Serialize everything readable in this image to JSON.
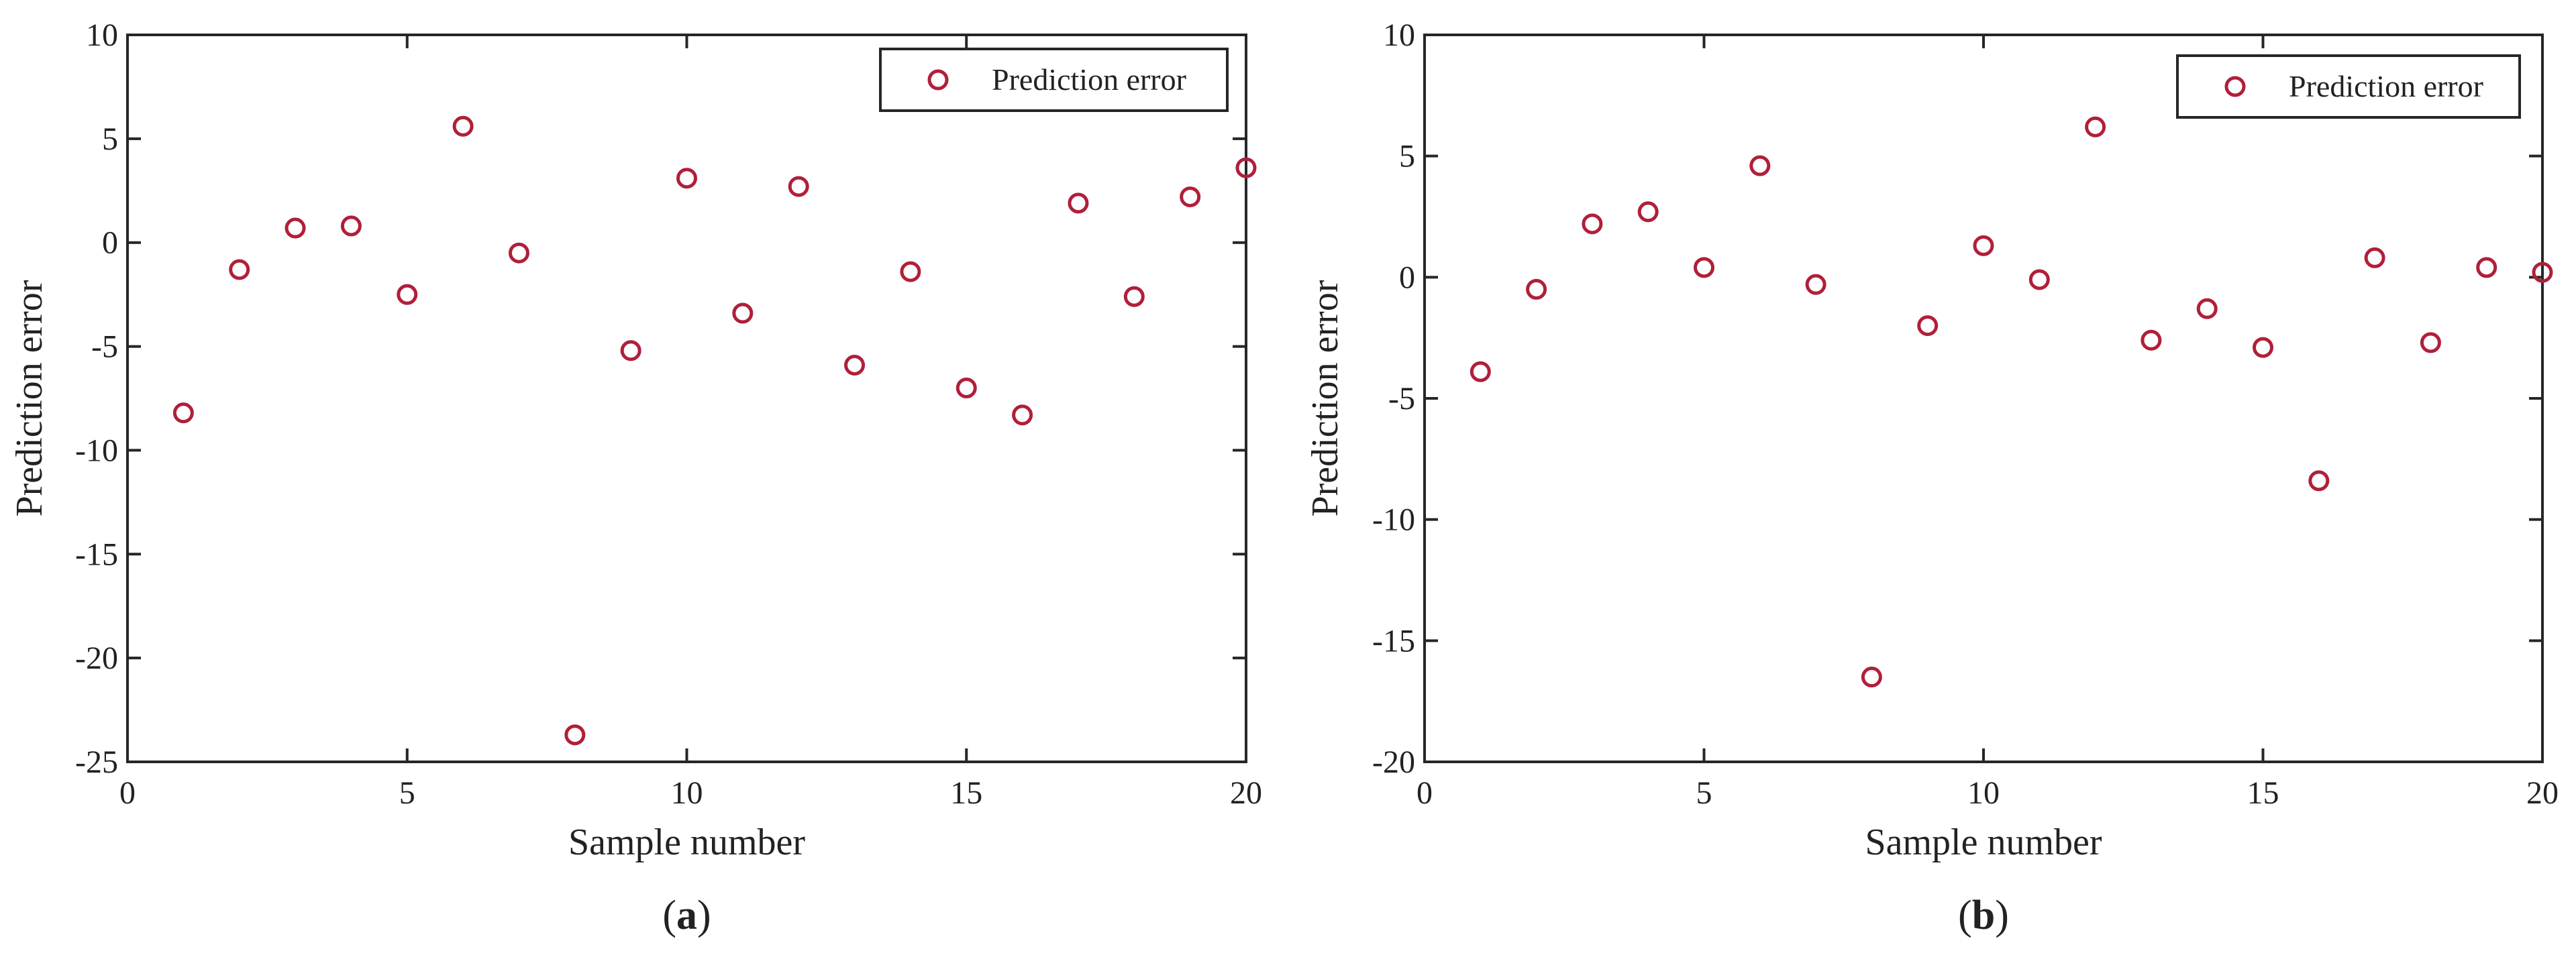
{
  "colors": {
    "marker": "#b01f3a",
    "axis": "#262626",
    "text": "#222222"
  },
  "chart_data": [
    {
      "type": "scatter",
      "panel_caption": {
        "open": "(",
        "letter": "a",
        "close": ")"
      },
      "xlabel": "Sample number",
      "ylabel": "Prediction error",
      "xlim": [
        0,
        20
      ],
      "ylim": [
        -25,
        10
      ],
      "xticks": [
        0,
        5,
        10,
        15,
        20
      ],
      "yticks": [
        -25,
        -20,
        -15,
        -10,
        -5,
        0,
        5,
        10
      ],
      "grid": false,
      "legend_position": "top-right",
      "series": [
        {
          "name": "Prediction error",
          "marker": "open-circle",
          "x": [
            1,
            2,
            3,
            4,
            5,
            6,
            7,
            8,
            9,
            10,
            11,
            12,
            13,
            14,
            15,
            16,
            17,
            18,
            19,
            20
          ],
          "y": [
            -8.2,
            -1.3,
            0.7,
            0.8,
            -2.5,
            5.6,
            -0.5,
            -23.7,
            -5.2,
            3.1,
            -3.4,
            2.7,
            -5.9,
            -1.4,
            -7.0,
            -8.3,
            1.9,
            -2.6,
            2.2,
            3.6
          ]
        }
      ]
    },
    {
      "type": "scatter",
      "panel_caption": {
        "open": "(",
        "letter": "b",
        "close": ")"
      },
      "xlabel": "Sample number",
      "ylabel": "Prediction error",
      "xlim": [
        0,
        20
      ],
      "ylim": [
        -20,
        10
      ],
      "xticks": [
        0,
        5,
        10,
        15,
        20
      ],
      "yticks": [
        -20,
        -15,
        -10,
        -5,
        0,
        5,
        10
      ],
      "grid": false,
      "legend_position": "top-right",
      "series": [
        {
          "name": "Prediction error",
          "marker": "open-circle",
          "x": [
            1,
            2,
            3,
            4,
            5,
            6,
            7,
            8,
            9,
            10,
            11,
            12,
            13,
            14,
            15,
            16,
            17,
            18,
            19,
            20
          ],
          "y": [
            -3.9,
            -0.5,
            2.2,
            2.7,
            0.4,
            4.6,
            -0.3,
            -16.5,
            -2.0,
            1.3,
            -0.1,
            6.2,
            -2.6,
            -1.3,
            -2.9,
            -8.4,
            0.8,
            -2.7,
            0.4,
            0.2
          ]
        }
      ]
    }
  ]
}
